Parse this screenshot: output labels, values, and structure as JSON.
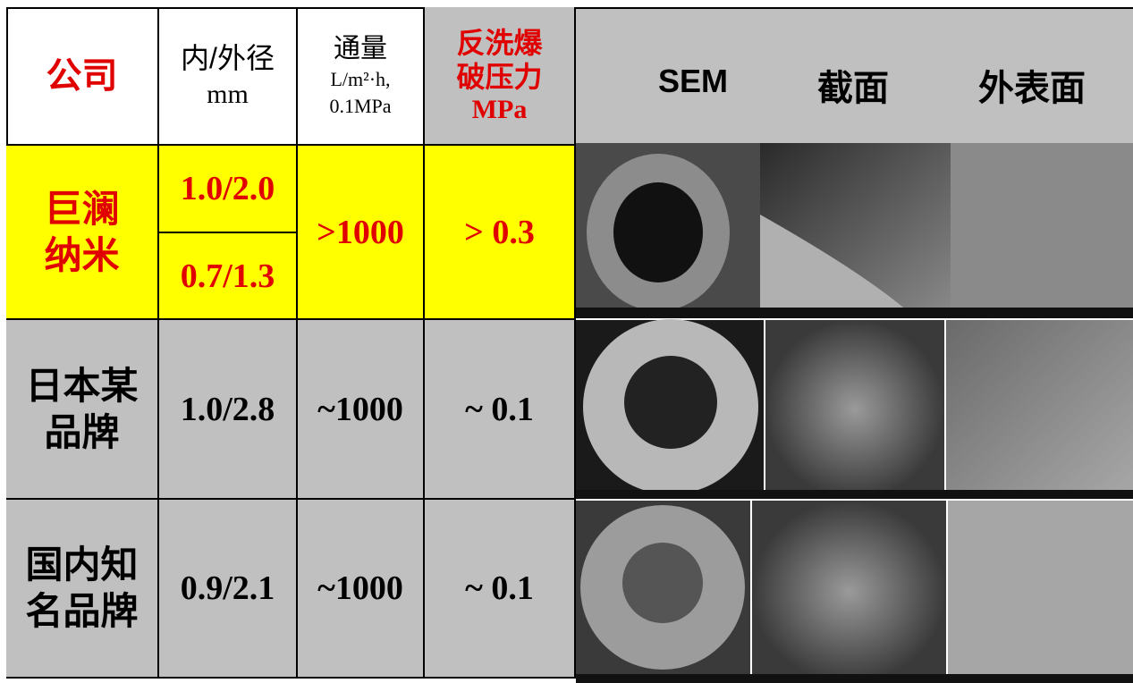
{
  "header": {
    "company": "公司",
    "diameter": [
      "内/外径",
      "mm"
    ],
    "flux": [
      "通量",
      "L/m²·h,",
      "0.1MPa"
    ],
    "pressure": [
      "反洗爆",
      "破压力",
      "MPa"
    ],
    "sem": "SEM",
    "section": "截面",
    "surface": "外表面"
  },
  "rows": [
    {
      "company": [
        "巨澜",
        "纳米"
      ],
      "diameter": [
        "1.0/2.0",
        "0.7/1.3"
      ],
      "flux": ">1000",
      "pressure": "> 0.3"
    },
    {
      "company": [
        "日本某",
        "品牌"
      ],
      "diameter": [
        "1.0/2.8"
      ],
      "flux": "~1000",
      "pressure": "~ 0.1"
    },
    {
      "company": [
        "国内知",
        "名品牌"
      ],
      "diameter": [
        "0.9/2.1"
      ],
      "flux": "~1000",
      "pressure": "~ 0.1"
    }
  ]
}
